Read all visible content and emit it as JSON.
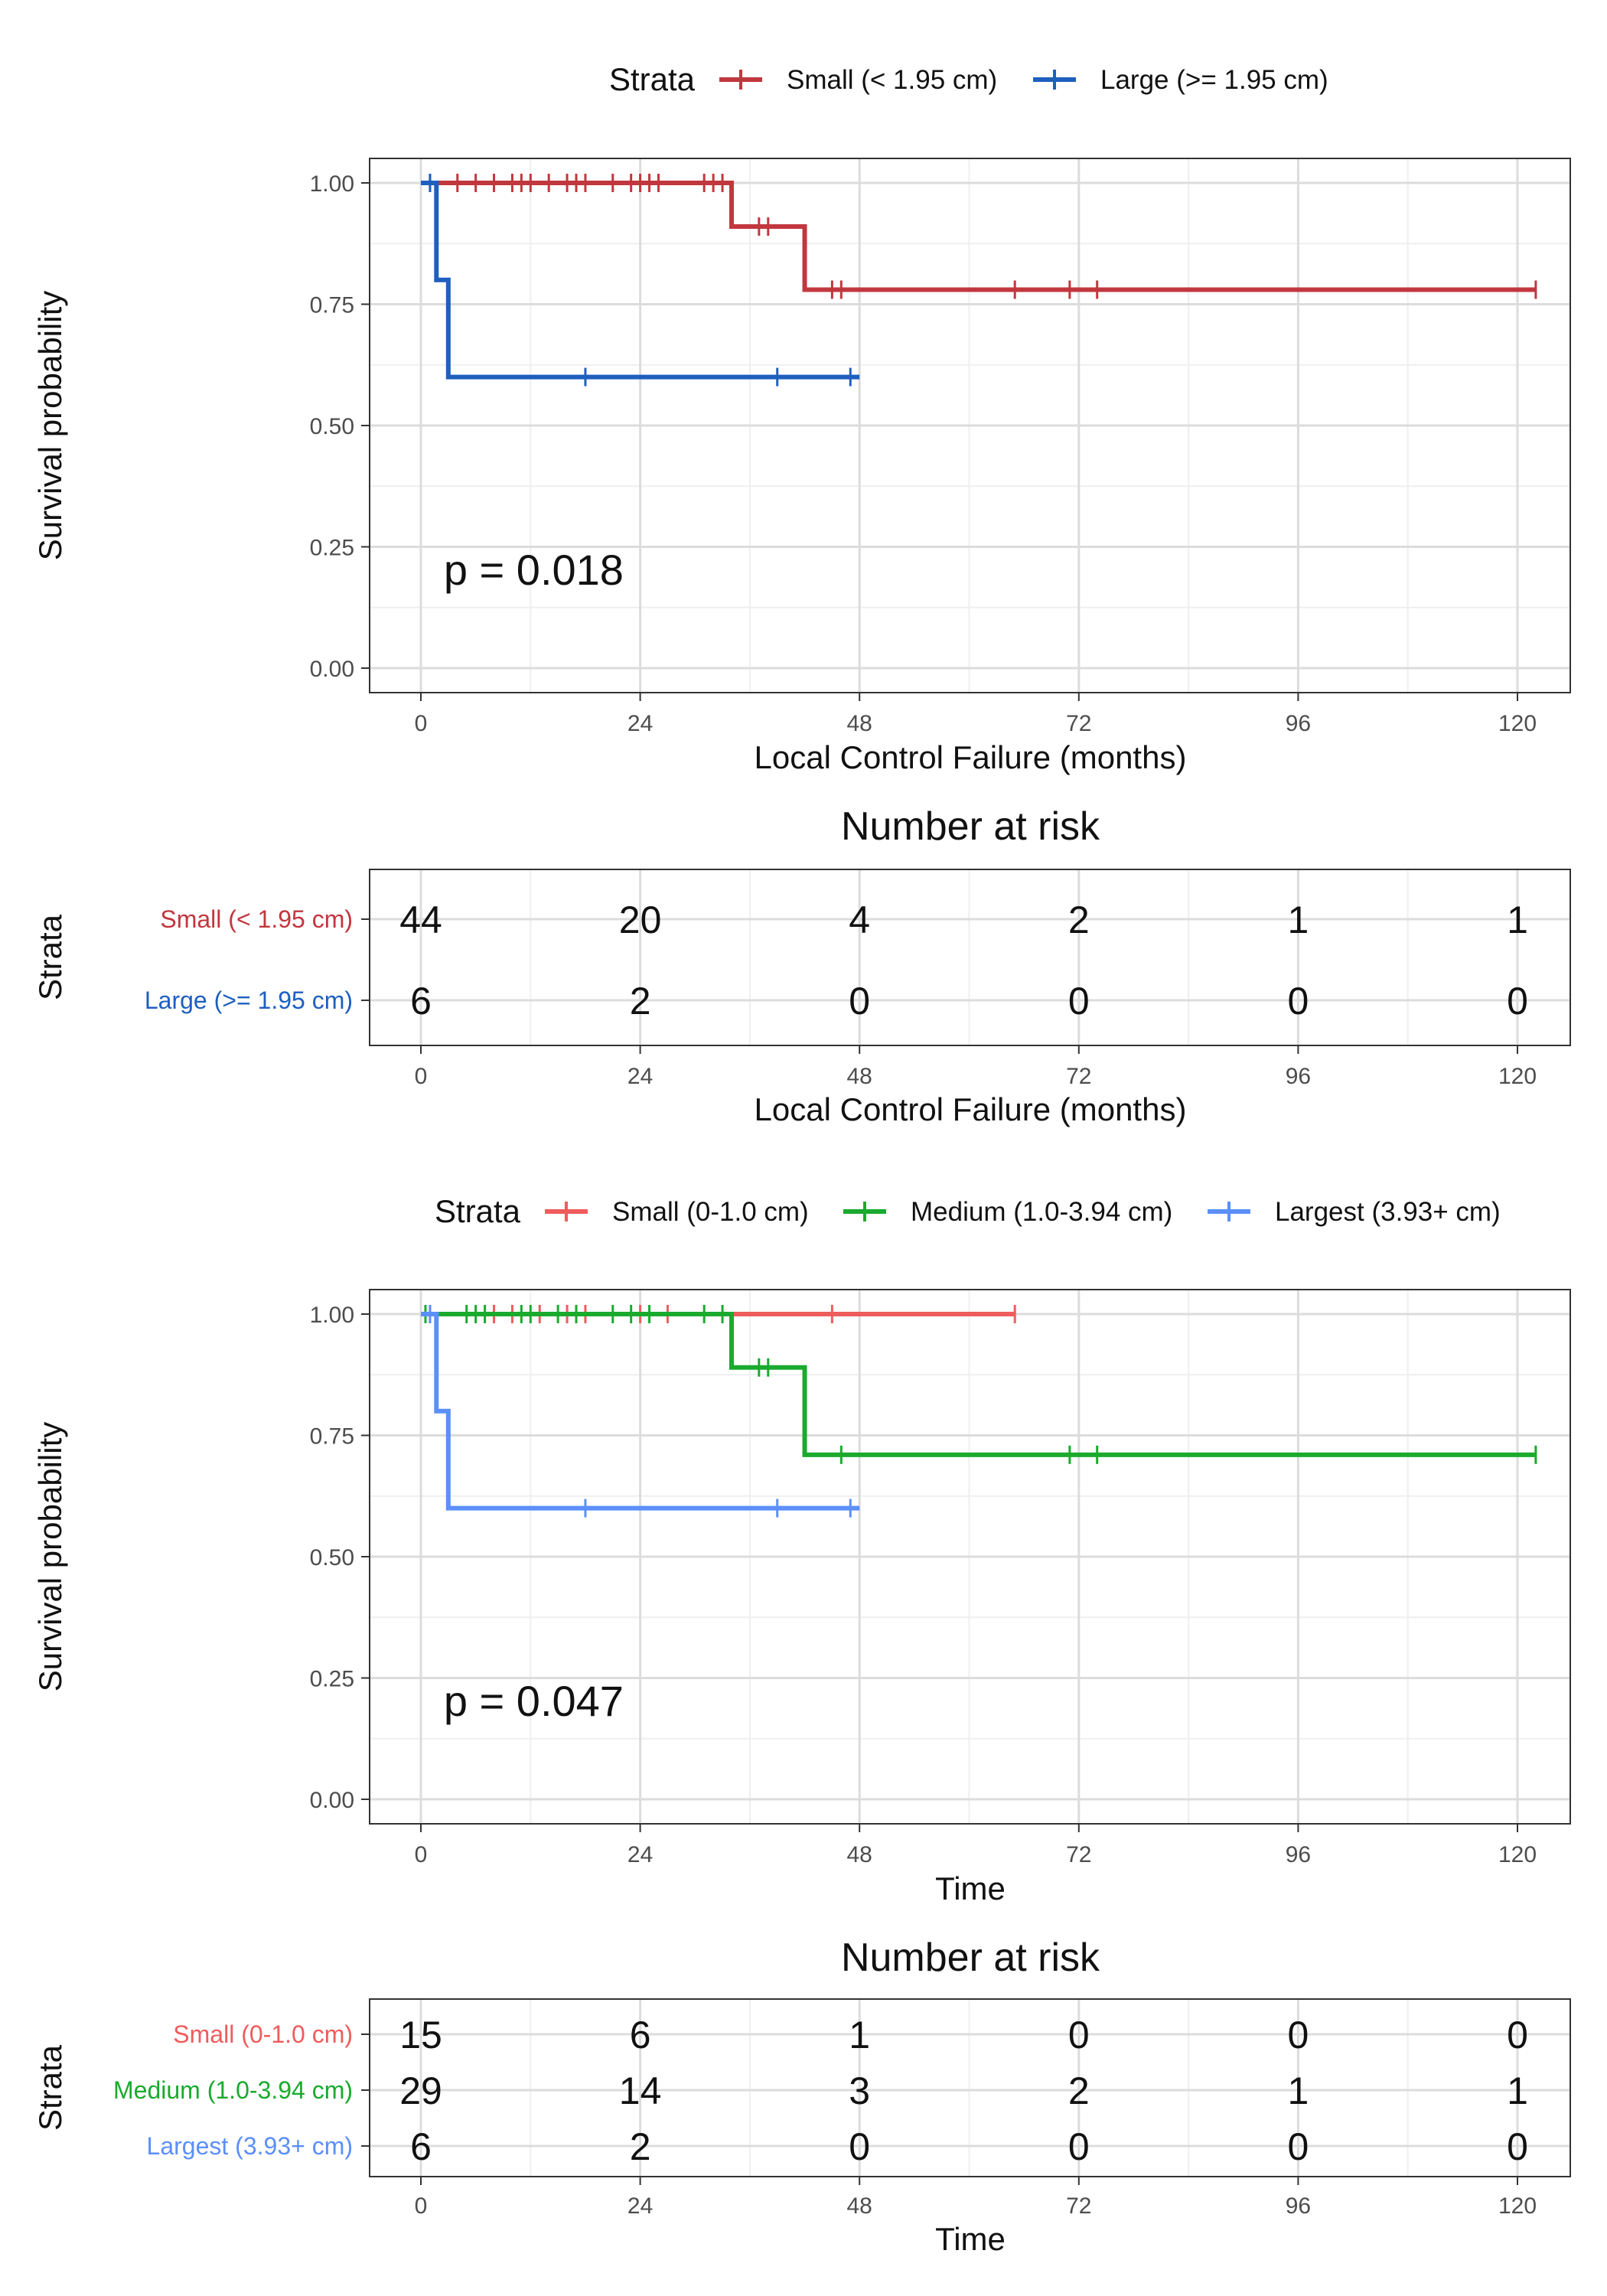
{
  "chart_data": [
    {
      "type": "line",
      "chart_kind": "kaplan-meier",
      "legend_title": "Strata",
      "legend_position": "top",
      "xlabel": "Local Control Failure (months)",
      "ylabel": "Survival probability",
      "xlim": [
        0,
        125
      ],
      "ylim": [
        0,
        1
      ],
      "x_ticks": [
        0,
        24,
        48,
        72,
        96,
        120
      ],
      "y_ticks": [
        0,
        0.25,
        0.5,
        0.75,
        1
      ],
      "y_tick_labels": [
        "0.00",
        "0.25",
        "0.50",
        "0.75",
        "1.00"
      ],
      "grid": true,
      "annotation": "p = 0.018",
      "series": [
        {
          "name": "Small (< 1.95 cm)",
          "color": "#c1373e",
          "steps": [
            [
              0,
              1.0
            ],
            [
              34,
              0.91
            ],
            [
              42,
              0.78
            ],
            [
              122,
              0.78
            ]
          ],
          "censored": [
            [
              1,
              1.0
            ],
            [
              4,
              1.0
            ],
            [
              6,
              1.0
            ],
            [
              8,
              1.0
            ],
            [
              10,
              1.0
            ],
            [
              11,
              1.0
            ],
            [
              12,
              1.0
            ],
            [
              14,
              1.0
            ],
            [
              16,
              1.0
            ],
            [
              17,
              1.0
            ],
            [
              18,
              1.0
            ],
            [
              21,
              1.0
            ],
            [
              23,
              1.0
            ],
            [
              24,
              1.0
            ],
            [
              25,
              1.0
            ],
            [
              26,
              1.0
            ],
            [
              31,
              1.0
            ],
            [
              32,
              1.0
            ],
            [
              33,
              1.0
            ],
            [
              37,
              0.91
            ],
            [
              38,
              0.91
            ],
            [
              45,
              0.78
            ],
            [
              46,
              0.78
            ],
            [
              65,
              0.78
            ],
            [
              71,
              0.78
            ],
            [
              74,
              0.78
            ],
            [
              122,
              0.78
            ]
          ]
        },
        {
          "name": "Large (>= 1.95 cm)",
          "color": "#1e5fbf",
          "steps": [
            [
              0,
              1.0
            ],
            [
              1.7,
              0.8
            ],
            [
              3,
              0.6
            ],
            [
              48,
              0.6
            ]
          ],
          "censored": [
            [
              1,
              1.0
            ],
            [
              18,
              0.6
            ],
            [
              39,
              0.6
            ],
            [
              47,
              0.6
            ]
          ]
        }
      ]
    },
    {
      "type": "table",
      "title": "Number at risk",
      "xlabel": "Local Control Failure (months)",
      "ylabel": "Strata",
      "x_ticks": [
        0,
        24,
        48,
        72,
        96,
        120
      ],
      "rows": [
        {
          "name": "Small (< 1.95 cm)",
          "color": "#c1373e",
          "values": [
            44,
            20,
            4,
            2,
            1,
            1
          ]
        },
        {
          "name": "Large (>= 1.95 cm)",
          "color": "#1e5fbf",
          "values": [
            6,
            2,
            0,
            0,
            0,
            0
          ]
        }
      ]
    },
    {
      "type": "line",
      "chart_kind": "kaplan-meier",
      "legend_title": "Strata",
      "legend_position": "top",
      "xlabel": "Time",
      "ylabel": "Survival probability",
      "xlim": [
        0,
        125
      ],
      "ylim": [
        0,
        1
      ],
      "x_ticks": [
        0,
        24,
        48,
        72,
        96,
        120
      ],
      "y_ticks": [
        0,
        0.25,
        0.5,
        0.75,
        1
      ],
      "y_tick_labels": [
        "0.00",
        "0.25",
        "0.50",
        "0.75",
        "1.00"
      ],
      "grid": true,
      "annotation": "p = 0.047",
      "series": [
        {
          "name": "Small (0-1.0 cm)",
          "color": "#ee5c5c",
          "steps": [
            [
              0,
              1.0
            ],
            [
              65,
              1.0
            ]
          ],
          "censored": [
            [
              1,
              1.0
            ],
            [
              8,
              1.0
            ],
            [
              10,
              1.0
            ],
            [
              13,
              1.0
            ],
            [
              16,
              1.0
            ],
            [
              18,
              1.0
            ],
            [
              24,
              1.0
            ],
            [
              27,
              1.0
            ],
            [
              45,
              1.0
            ],
            [
              65,
              1.0
            ]
          ]
        },
        {
          "name": "Medium (1.0-3.94 cm)",
          "color": "#1aaa2e",
          "steps": [
            [
              0,
              1.0
            ],
            [
              34,
              0.89
            ],
            [
              42,
              0.71
            ],
            [
              122,
              0.71
            ]
          ],
          "censored": [
            [
              0.5,
              1.0
            ],
            [
              5,
              1.0
            ],
            [
              6,
              1.0
            ],
            [
              7,
              1.0
            ],
            [
              11,
              1.0
            ],
            [
              12,
              1.0
            ],
            [
              15,
              1.0
            ],
            [
              17,
              1.0
            ],
            [
              21,
              1.0
            ],
            [
              23,
              1.0
            ],
            [
              25,
              1.0
            ],
            [
              31,
              1.0
            ],
            [
              33,
              1.0
            ],
            [
              37,
              0.89
            ],
            [
              38,
              0.89
            ],
            [
              46,
              0.71
            ],
            [
              71,
              0.71
            ],
            [
              74,
              0.71
            ],
            [
              122,
              0.71
            ]
          ]
        },
        {
          "name": "Largest (3.93+ cm)",
          "color": "#5b8ff9",
          "steps": [
            [
              0,
              1.0
            ],
            [
              1.7,
              0.8
            ],
            [
              3,
              0.6
            ],
            [
              48,
              0.6
            ]
          ],
          "censored": [
            [
              1,
              1.0
            ],
            [
              18,
              0.6
            ],
            [
              39,
              0.6
            ],
            [
              47,
              0.6
            ]
          ]
        }
      ]
    },
    {
      "type": "table",
      "title": "Number at risk",
      "xlabel": "Time",
      "ylabel": "Strata",
      "x_ticks": [
        0,
        24,
        48,
        72,
        96,
        120
      ],
      "rows": [
        {
          "name": "Small (0-1.0 cm)",
          "color": "#ee5c5c",
          "values": [
            15,
            6,
            1,
            0,
            0,
            0
          ]
        },
        {
          "name": "Medium (1.0-3.94 cm)",
          "color": "#1aaa2e",
          "values": [
            29,
            14,
            3,
            2,
            1,
            1
          ]
        },
        {
          "name": "Largest (3.93+ cm)",
          "color": "#5b8ff9",
          "values": [
            6,
            2,
            0,
            0,
            0,
            0
          ]
        }
      ]
    }
  ]
}
